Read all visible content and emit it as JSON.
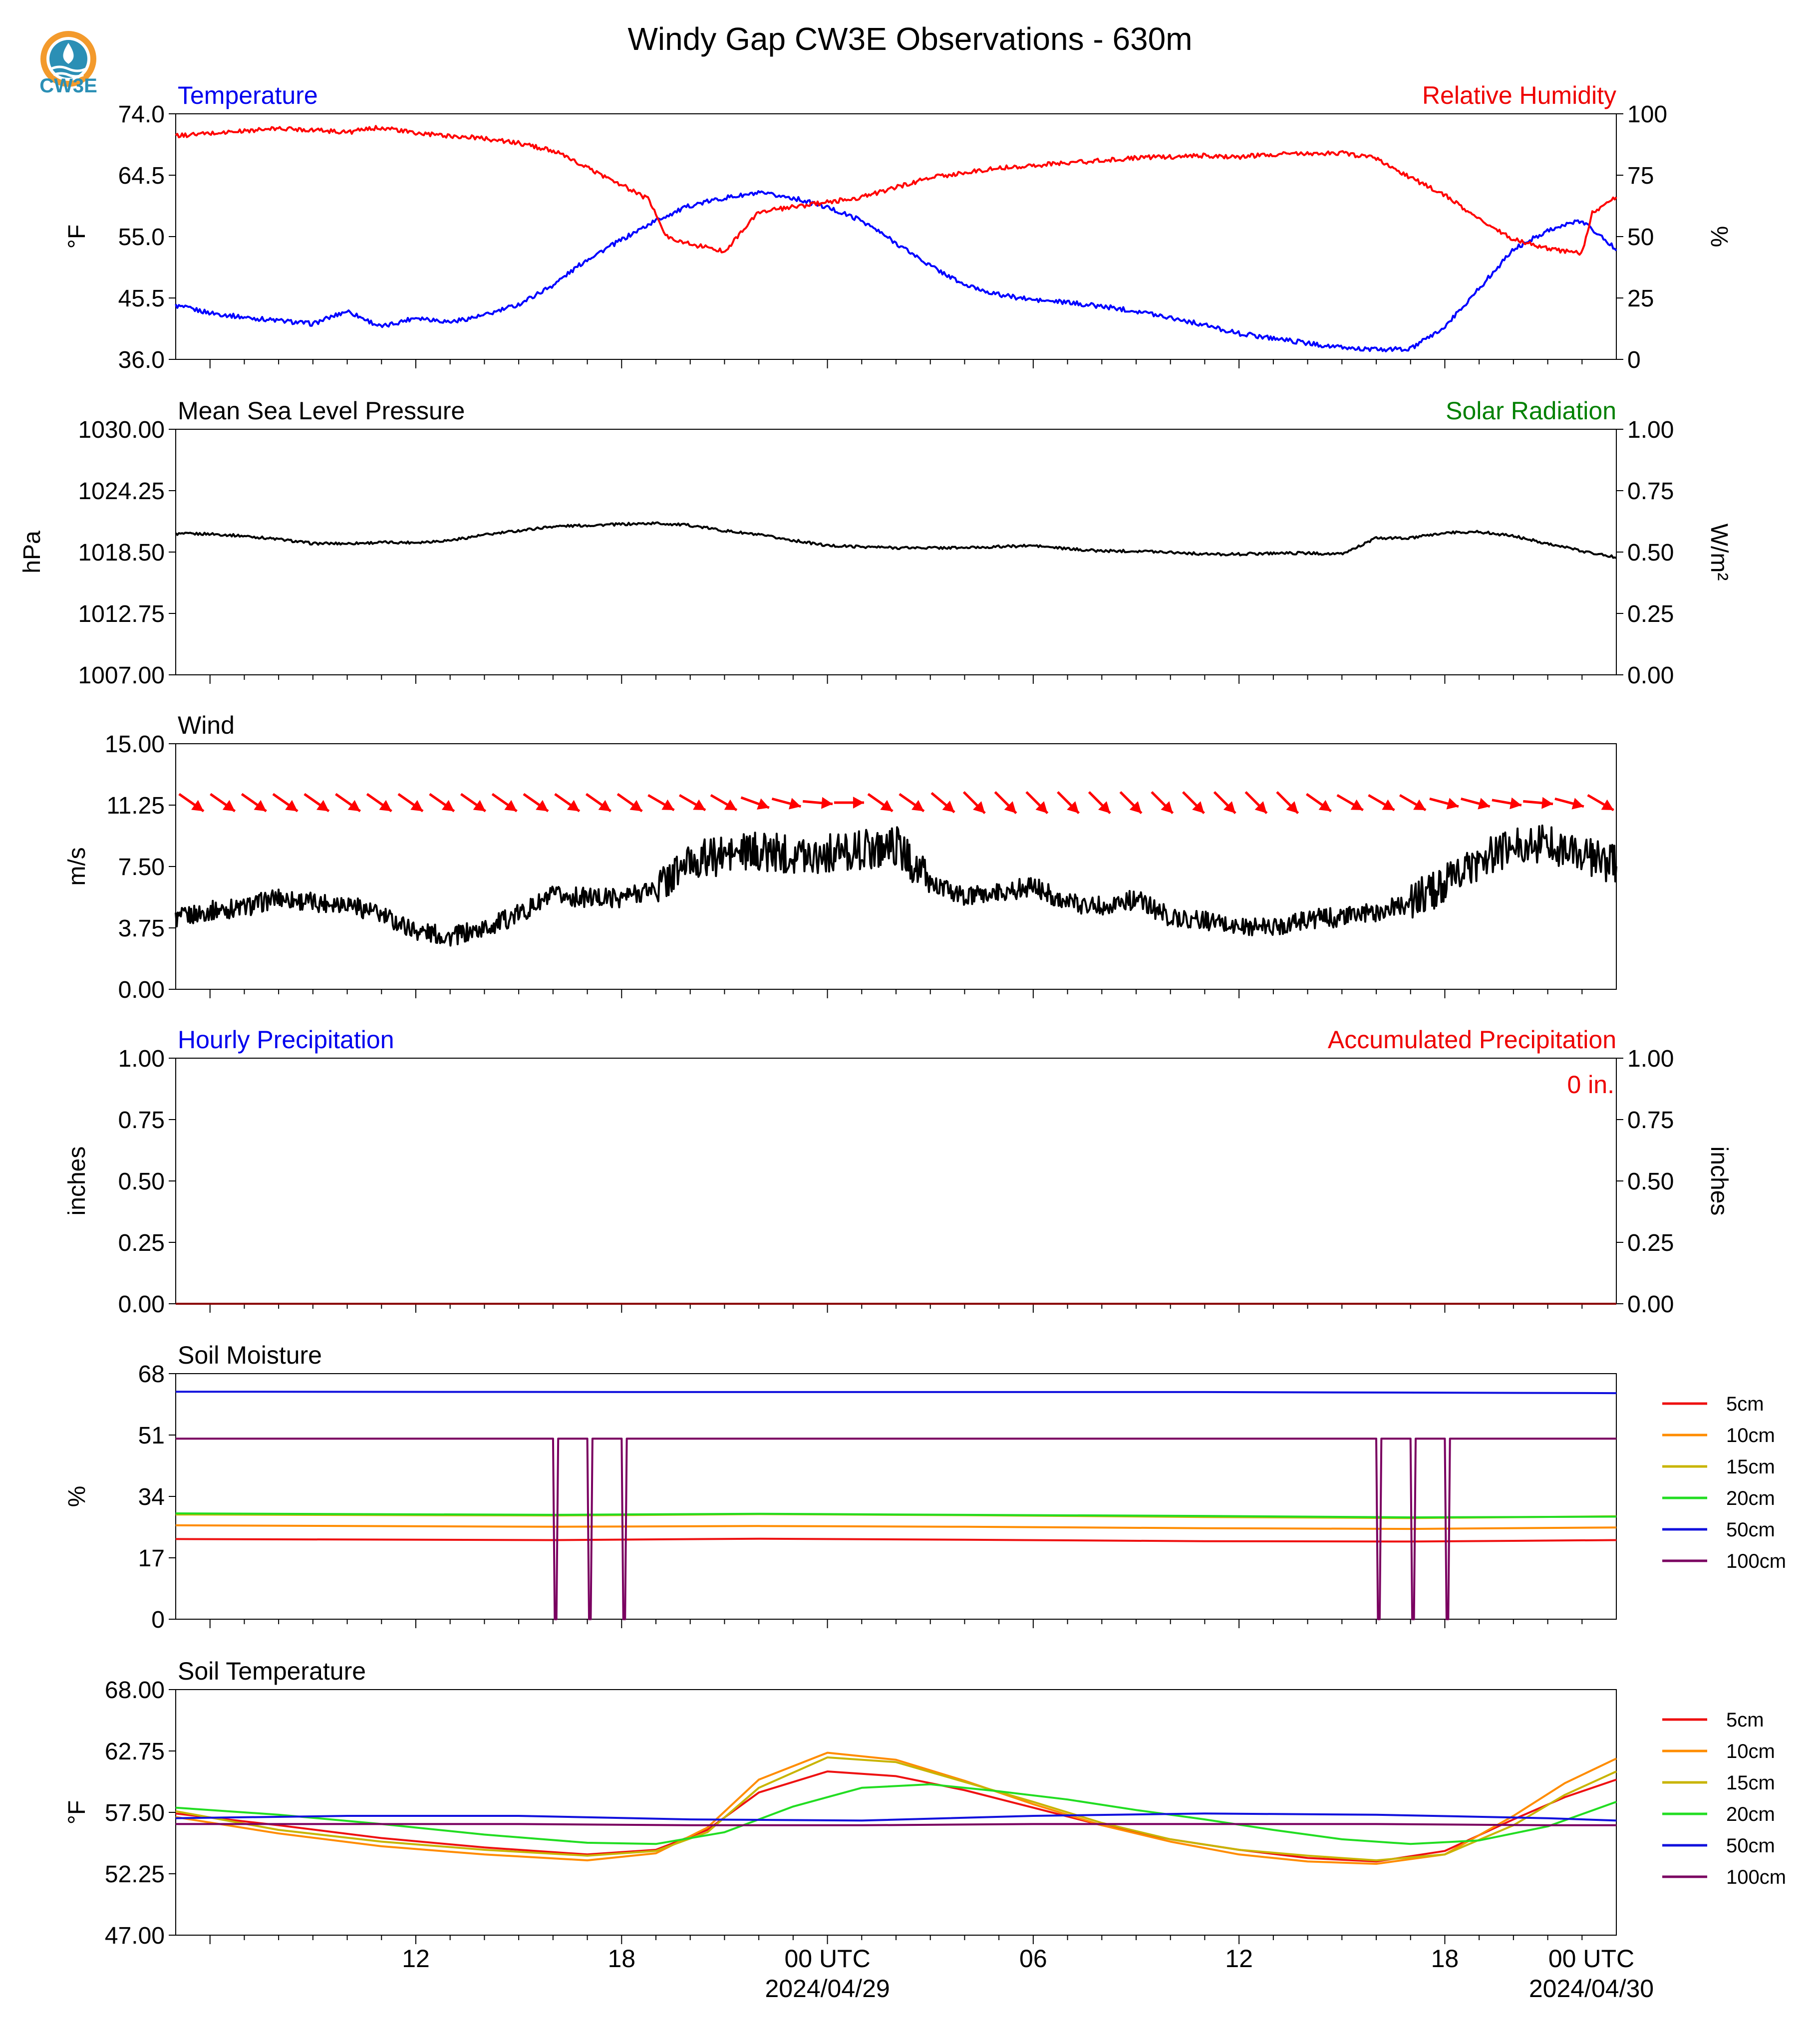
{
  "title": "Windy Gap CW3E Observations - 630m",
  "logo": {
    "text": "CW3E",
    "icon": "cw3e-water-drop-logo"
  },
  "x_axis": {
    "tick_labels": [
      "12",
      "18",
      "00 UTC",
      "06",
      "12",
      "18",
      "00 UTC"
    ],
    "date_labels": [
      "2024/04/29",
      "2024/04/30"
    ]
  },
  "chart_data": [
    {
      "id": "temp_rh",
      "type": "line",
      "title_left": "Temperature",
      "title_right": "Relative Humidity",
      "ylabel_left": "°F",
      "ylabel_right": "%",
      "ylim_left": [
        36.0,
        74.0
      ],
      "yticks_left": [
        "36.0",
        "45.5",
        "55.0",
        "64.5",
        "74.0"
      ],
      "ylim_right": [
        0,
        100
      ],
      "yticks_right": [
        "0",
        "25",
        "50",
        "75",
        "100"
      ],
      "x_range_hours": [
        5,
        47
      ],
      "colors": {
        "title_left": "#0000ee",
        "title_right": "#ee0000"
      },
      "series": [
        {
          "name": "Temperature",
          "axis": "left",
          "color": "#0000ff",
          "x": [
            5,
            6,
            7,
            8,
            9,
            10,
            11,
            12,
            13,
            14,
            15,
            16,
            17,
            18,
            19,
            20,
            21,
            22,
            23,
            24,
            25,
            26,
            27,
            28,
            29,
            30,
            31,
            32,
            33,
            34,
            35,
            36,
            37,
            38,
            39,
            40,
            41,
            42,
            43,
            44,
            45,
            46,
            47
          ],
          "y": [
            44.3,
            43.2,
            42.5,
            42.0,
            41.5,
            43.5,
            41.0,
            42.5,
            41.8,
            42.8,
            44.5,
            47.5,
            51.5,
            54.5,
            57.5,
            59.8,
            61.0,
            61.7,
            61.0,
            59.5,
            57.5,
            54.0,
            50.5,
            47.5,
            46.0,
            45.2,
            44.8,
            44.2,
            43.5,
            42.5,
            41.3,
            40.0,
            39.3,
            38.5,
            37.8,
            37.5,
            37.6,
            41.0,
            47.0,
            53.0,
            56.0,
            57.5,
            53.0
          ]
        },
        {
          "name": "Relative Humidity",
          "axis": "right",
          "color": "#ff0000",
          "x": [
            5,
            6,
            7,
            8,
            9,
            10,
            11,
            12,
            13,
            14,
            15,
            16,
            17,
            18,
            18.8,
            19.3,
            20,
            21,
            22,
            23,
            24,
            25,
            26,
            27,
            28,
            29,
            30,
            31,
            32,
            33,
            34,
            35,
            36,
            37,
            38,
            39,
            40,
            41,
            42,
            43,
            44,
            45,
            46,
            46.3,
            47
          ],
          "y": [
            91,
            92,
            93,
            94,
            93.5,
            92.5,
            94.5,
            92,
            91,
            90,
            88,
            85,
            78,
            71,
            65,
            50,
            47,
            44,
            60,
            62,
            64,
            66,
            70,
            74,
            76,
            78,
            79,
            80,
            81,
            82,
            82.5,
            83,
            82.5,
            83.5,
            84,
            84,
            82,
            74,
            67,
            57,
            49,
            45,
            43,
            60,
            66
          ]
        }
      ]
    },
    {
      "id": "pressure",
      "type": "line",
      "title_left": "Mean Sea Level Pressure",
      "title_right": "Solar Radiation",
      "ylabel_left": "hPa",
      "ylabel_right": "W/m²",
      "ylim_left": [
        1007.0,
        1030.0
      ],
      "yticks_left": [
        "1007.00",
        "1012.75",
        "1018.50",
        "1024.25",
        "1030.00"
      ],
      "ylim_right": [
        0,
        1.0
      ],
      "yticks_right": [
        "0.00",
        "0.25",
        "0.50",
        "0.75",
        "1.00"
      ],
      "x_range_hours": [
        5,
        47
      ],
      "colors": {
        "title_left": "#000000",
        "title_right": "#008000"
      },
      "series": [
        {
          "name": "Mean Sea Level Pressure",
          "axis": "left",
          "color": "#000000",
          "x": [
            5,
            6,
            7,
            8,
            9,
            10,
            11,
            12,
            13,
            14,
            15,
            16,
            17,
            18,
            19,
            20,
            21,
            22,
            23,
            24,
            25,
            26,
            27,
            28,
            29,
            30,
            31,
            32,
            33,
            34,
            35,
            36,
            37,
            38,
            39,
            40,
            41,
            42,
            43,
            44,
            45,
            46,
            47
          ],
          "y": [
            1020.2,
            1020.2,
            1020.0,
            1019.7,
            1019.3,
            1019.3,
            1019.4,
            1019.4,
            1019.6,
            1020.1,
            1020.5,
            1020.9,
            1021.0,
            1021.1,
            1021.2,
            1021.0,
            1020.5,
            1020.1,
            1019.6,
            1019.1,
            1019.0,
            1018.9,
            1018.9,
            1018.9,
            1019.0,
            1019.1,
            1018.8,
            1018.6,
            1018.6,
            1018.5,
            1018.3,
            1018.3,
            1018.4,
            1018.4,
            1018.3,
            1019.8,
            1019.8,
            1020.3,
            1020.4,
            1020.0,
            1019.3,
            1018.6,
            1018.0
          ]
        }
      ]
    },
    {
      "id": "wind",
      "type": "line",
      "title_left": "Wind",
      "ylabel_left": "m/s",
      "ylim_left": [
        0.0,
        15.0
      ],
      "yticks_left": [
        "0.00",
        "3.75",
        "7.50",
        "11.25",
        "15.00"
      ],
      "x_range_hours": [
        5,
        47
      ],
      "colors": {
        "title_left": "#000000",
        "arrows": "#ff0000"
      },
      "series": [
        {
          "name": "Wind Speed",
          "axis": "left",
          "color": "#000000",
          "x": [
            5,
            6,
            7,
            8,
            9,
            10,
            11,
            12,
            13,
            14,
            15,
            16,
            17,
            18,
            19,
            20,
            21,
            22,
            23,
            24,
            25,
            26,
            27,
            28,
            29,
            30,
            31,
            32,
            33,
            34,
            35,
            36,
            37,
            38,
            39,
            40,
            41,
            42,
            43,
            44,
            45,
            46,
            47
          ],
          "y": [
            4.3,
            4.8,
            5.0,
            5.6,
            5.3,
            5.3,
            4.5,
            3.6,
            3.2,
            3.7,
            4.6,
            5.7,
            5.6,
            5.6,
            6.2,
            7.8,
            8.2,
            8.4,
            8.3,
            8.3,
            8.5,
            8.8,
            6.5,
            5.6,
            5.9,
            6.3,
            5.3,
            5.1,
            5.5,
            4.4,
            4.2,
            3.8,
            3.8,
            4.3,
            4.4,
            4.7,
            5.3,
            6.4,
            7.8,
            8.7,
            9.0,
            8.1,
            7.6
          ]
        }
      ],
      "arrows_dir_deg": [
        35,
        35,
        35,
        35,
        35,
        35,
        35,
        35,
        35,
        35,
        35,
        35,
        35,
        35,
        35,
        30,
        30,
        30,
        20,
        15,
        5,
        0,
        35,
        35,
        40,
        45,
        45,
        45,
        45,
        45,
        45,
        45,
        45,
        45,
        45,
        45,
        35,
        30,
        30,
        30,
        15,
        15,
        10,
        5,
        15,
        30
      ]
    },
    {
      "id": "precip",
      "type": "line",
      "title_left": "Hourly Precipitation",
      "title_right": "Accumulated Precipitation",
      "annotation": "0 in.",
      "ylabel_left": "inches",
      "ylabel_right": "inches",
      "ylim_left": [
        0.0,
        1.0
      ],
      "yticks_left": [
        "0.00",
        "0.25",
        "0.50",
        "0.75",
        "1.00"
      ],
      "ylim_right": [
        0.0,
        1.0
      ],
      "yticks_right": [
        "0.00",
        "0.25",
        "0.50",
        "0.75",
        "1.00"
      ],
      "x_range_hours": [
        5,
        47
      ],
      "colors": {
        "title_left": "#0000ee",
        "title_right": "#ee0000"
      },
      "series": [
        {
          "name": "Accumulated Precipitation",
          "axis": "left",
          "color": "#8b0000",
          "x": [
            5,
            47
          ],
          "y": [
            0,
            0
          ]
        }
      ]
    },
    {
      "id": "soil_moisture",
      "type": "line",
      "title_left": "Soil Moisture",
      "ylabel_left": "%",
      "ylim_left": [
        0,
        68
      ],
      "yticks_left": [
        "0",
        "17",
        "34",
        "51",
        "68"
      ],
      "x_range_hours": [
        5,
        47
      ],
      "colors": {
        "title_left": "#000000"
      },
      "legend": [
        "5cm",
        "10cm",
        "15cm",
        "20cm",
        "50cm",
        "100cm"
      ],
      "series": [
        {
          "name": "5cm",
          "color": "#ee1111",
          "x": [
            5,
            16,
            22,
            28,
            35,
            41,
            47
          ],
          "y": [
            22.2,
            21.9,
            22.3,
            22.0,
            21.6,
            21.5,
            21.9
          ]
        },
        {
          "name": "10cm",
          "color": "#ff8c00",
          "x": [
            5,
            16,
            22,
            28,
            35,
            41,
            47
          ],
          "y": [
            26.0,
            25.6,
            25.8,
            25.6,
            25.2,
            25.0,
            25.4
          ]
        },
        {
          "name": "15cm",
          "color": "#c8b400",
          "x": [
            5,
            16,
            22,
            28,
            35,
            41,
            47
          ],
          "y": [
            29.0,
            28.7,
            29.1,
            28.8,
            28.3,
            28.0,
            28.5
          ]
        },
        {
          "name": "20cm",
          "color": "#22dd22",
          "x": [
            5,
            16,
            22,
            28,
            35,
            41,
            47
          ],
          "y": [
            29.3,
            28.9,
            29.2,
            28.9,
            28.6,
            28.2,
            28.4
          ]
        },
        {
          "name": "50cm",
          "color": "#1111dd",
          "x": [
            5,
            20,
            35,
            47
          ],
          "y": [
            63.0,
            62.9,
            62.9,
            62.6
          ]
        },
        {
          "name": "100cm",
          "color": "#7a0060",
          "x": [
            5,
            16,
            16.05,
            16.1,
            16.15,
            17,
            17.05,
            17.1,
            17.15,
            18,
            18.05,
            18.1,
            18.15,
            40,
            40.05,
            40.1,
            40.15,
            41,
            41.05,
            41.1,
            41.15,
            42,
            42.05,
            42.1,
            42.15,
            47
          ],
          "y": [
            50.0,
            50.0,
            0,
            0,
            50.0,
            50.0,
            0,
            0,
            50.0,
            50.0,
            0,
            0,
            50.0,
            50.0,
            0,
            0,
            50.0,
            50.0,
            0,
            0,
            50.0,
            50.0,
            0,
            0,
            50.0,
            50.0
          ]
        }
      ]
    },
    {
      "id": "soil_temperature",
      "type": "line",
      "title_left": "Soil Temperature",
      "ylabel_left": "°F",
      "ylim_left": [
        47.0,
        68.0
      ],
      "yticks_left": [
        "47.00",
        "52.25",
        "57.50",
        "62.75",
        "68.00"
      ],
      "x_range_hours": [
        5,
        47
      ],
      "colors": {
        "title_left": "#000000"
      },
      "legend": [
        "5cm",
        "10cm",
        "15cm",
        "20cm",
        "50cm",
        "100cm"
      ],
      "series": [
        {
          "name": "5cm",
          "color": "#ee1111",
          "x": [
            5,
            8,
            11,
            14,
            17,
            19,
            20.5,
            22,
            24,
            26,
            28,
            30,
            32,
            34,
            36,
            38,
            40,
            42,
            44,
            45.5,
            47
          ],
          "y": [
            57.4,
            56.4,
            55.3,
            54.5,
            53.9,
            54.3,
            56.0,
            59.2,
            61.0,
            60.6,
            59.4,
            57.9,
            56.4,
            55.2,
            54.3,
            53.6,
            53.3,
            54.2,
            56.9,
            58.8,
            60.3
          ]
        },
        {
          "name": "10cm",
          "color": "#ff8c00",
          "x": [
            5,
            8,
            11,
            14,
            17,
            19,
            20.5,
            22,
            24,
            26,
            28,
            30,
            32,
            34,
            36,
            38,
            40,
            42,
            44,
            45.5,
            47
          ],
          "y": [
            57.1,
            55.7,
            54.6,
            53.9,
            53.4,
            54.0,
            56.2,
            60.3,
            62.6,
            62.0,
            60.2,
            58.2,
            56.4,
            55.0,
            53.9,
            53.3,
            53.1,
            53.9,
            57.2,
            60.0,
            62.1
          ]
        },
        {
          "name": "15cm",
          "color": "#c8b400",
          "x": [
            5,
            8,
            11,
            14,
            17,
            19,
            20.5,
            22,
            24,
            26,
            28,
            30,
            32,
            34,
            36,
            38,
            40,
            42,
            44,
            45.5,
            47
          ],
          "y": [
            57.6,
            56.0,
            55.0,
            54.3,
            53.8,
            54.2,
            55.8,
            59.6,
            62.2,
            61.8,
            60.1,
            58.4,
            56.6,
            55.2,
            54.3,
            53.8,
            53.4,
            53.9,
            56.4,
            59.0,
            61.0
          ]
        },
        {
          "name": "20cm",
          "color": "#22dd22",
          "x": [
            5,
            8,
            11,
            14,
            17,
            19,
            21,
            23,
            25,
            27,
            29,
            31,
            33,
            35,
            37,
            39,
            41,
            43,
            45,
            47
          ],
          "y": [
            57.9,
            57.3,
            56.5,
            55.6,
            54.9,
            54.8,
            55.8,
            58.0,
            59.6,
            59.9,
            59.3,
            58.6,
            57.7,
            56.9,
            56.0,
            55.2,
            54.8,
            55.1,
            56.3,
            58.4
          ]
        },
        {
          "name": "50cm",
          "color": "#1111dd",
          "x": [
            5,
            10,
            15,
            20,
            25,
            30,
            35,
            40,
            45,
            47
          ],
          "y": [
            57.0,
            57.2,
            57.2,
            56.9,
            56.8,
            57.2,
            57.4,
            57.3,
            57.0,
            56.8
          ]
        },
        {
          "name": "100cm",
          "color": "#7a0060",
          "x": [
            5,
            10,
            15,
            20,
            25,
            30,
            35,
            40,
            45,
            47
          ],
          "y": [
            56.5,
            56.5,
            56.5,
            56.4,
            56.4,
            56.5,
            56.5,
            56.5,
            56.4,
            56.4
          ]
        }
      ]
    }
  ]
}
